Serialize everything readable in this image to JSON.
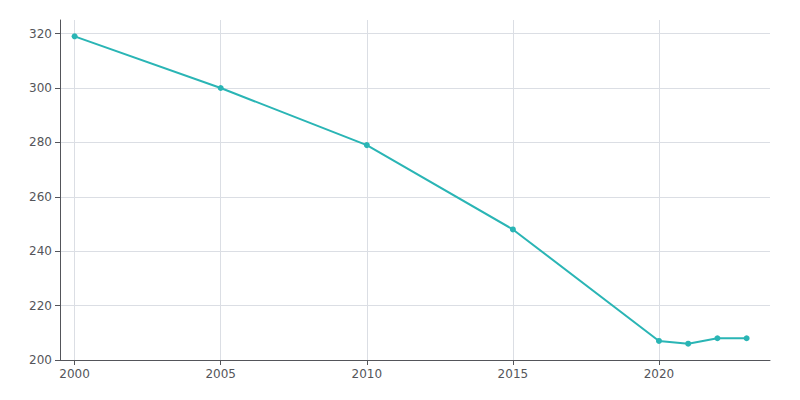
{
  "chart_data": {
    "type": "line",
    "x": [
      2000,
      2005,
      2010,
      2015,
      2020,
      2021,
      2022,
      2023
    ],
    "values": [
      319,
      300,
      279,
      248,
      207,
      206,
      208,
      208
    ],
    "color": "#2ab5b5",
    "marker": "circle",
    "xlim": [
      1999.5,
      2023.8
    ],
    "xticks": [
      2000,
      2005,
      2010,
      2015,
      2020
    ],
    "ylim": [
      200,
      325
    ],
    "yticks": [
      200,
      220,
      240,
      260,
      280,
      300,
      320
    ],
    "grid": true
  }
}
